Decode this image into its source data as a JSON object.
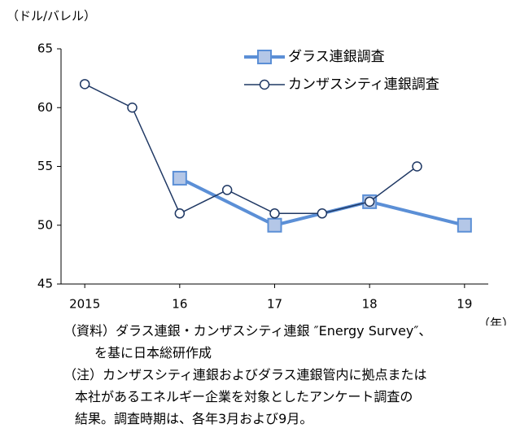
{
  "chart_data": {
    "type": "line",
    "y_unit": "（ドル/バレル）",
    "x_unit": "（年）",
    "series": [
      {
        "name": "ダラス連銀調査",
        "color": "#5b8fd6",
        "marker": "square",
        "x": [
          2016,
          2017,
          2018,
          2019
        ],
        "values": [
          54,
          50,
          52,
          50
        ]
      },
      {
        "name": "カンザスシティ連銀調査",
        "color": "#1f3864",
        "marker": "circle",
        "x": [
          2015,
          2015.5,
          2016,
          2016.5,
          2017,
          2017.5,
          2018,
          2018.5
        ],
        "values": [
          62,
          60,
          51,
          53,
          51,
          51,
          52,
          55
        ]
      }
    ],
    "xlim": [
      2014.75,
      2019.25
    ],
    "xticks": [
      {
        "value": 2015,
        "label": "2015"
      },
      {
        "value": 2016,
        "label": "16"
      },
      {
        "value": 2017,
        "label": "17"
      },
      {
        "value": 2018,
        "label": "18"
      },
      {
        "value": 2019,
        "label": "19"
      }
    ],
    "ylim": [
      45,
      65
    ],
    "yticks": [
      45,
      50,
      55,
      60,
      65
    ],
    "legend": "upper right",
    "notes": [
      "（資料）ダラス連銀・カンザスシティ連銀 ″Energy Survey″、",
      "を基に日本総研作成",
      "（注）カンザスシティ連銀およびダラス連銀管内に拠点または",
      "本社があるエネルギー企業を対象としたアンケート調査の",
      "結果。調査時期は、各年3月および9月。"
    ]
  }
}
